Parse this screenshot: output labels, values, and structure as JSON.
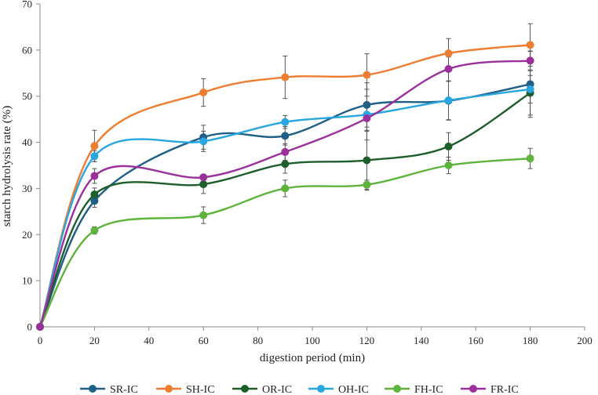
{
  "chart_data": {
    "type": "line",
    "title": "",
    "xlabel": "digestion period (min)",
    "ylabel": "starch hydrolysis rate (%)",
    "xlim": [
      0,
      200
    ],
    "ylim": [
      0,
      70
    ],
    "xticks": [
      0,
      20,
      40,
      60,
      80,
      100,
      120,
      140,
      160,
      180,
      200
    ],
    "yticks": [
      0,
      10,
      20,
      30,
      40,
      50,
      60,
      70
    ],
    "grid": false,
    "legend_position": "bottom",
    "x": [
      0,
      20,
      60,
      90,
      120,
      150,
      180
    ],
    "series": [
      {
        "name": "SR-IC",
        "color": "#1f5f85",
        "values": [
          0,
          27.3,
          41.1,
          41.4,
          48.1,
          49.0,
          52.6
        ],
        "errors": [
          0,
          1.4,
          2.6,
          2.0,
          4.8,
          4.2,
          7.2
        ]
      },
      {
        "name": "SH-IC",
        "color": "#ed7d31",
        "values": [
          0,
          39.2,
          50.8,
          54.1,
          54.6,
          59.3,
          61.1
        ],
        "errors": [
          0,
          3.4,
          3.0,
          4.6,
          4.6,
          3.2,
          4.6
        ]
      },
      {
        "name": "OR-IC",
        "color": "#1d5e2b",
        "values": [
          0,
          28.7,
          30.9,
          35.3,
          36.1,
          39.1,
          50.7
        ],
        "errors": [
          0,
          1.4,
          2.0,
          2.0,
          6.5,
          3.0,
          4.8
        ]
      },
      {
        "name": "OH-IC",
        "color": "#27a6df",
        "values": [
          0,
          37.0,
          40.2,
          44.4,
          46.0,
          49.1,
          51.5
        ],
        "errors": [
          0,
          1.2,
          2.2,
          1.4,
          5.5,
          4.2,
          3.0
        ]
      },
      {
        "name": "FH-IC",
        "color": "#5db33c",
        "values": [
          0,
          20.9,
          24.2,
          30.0,
          30.8,
          35.0,
          36.5
        ],
        "errors": [
          0,
          0.8,
          1.8,
          1.8,
          1.0,
          1.8,
          2.2
        ]
      },
      {
        "name": "FR-IC",
        "color": "#9b309b",
        "values": [
          0,
          32.7,
          32.4,
          37.9,
          45.2,
          55.9,
          57.7
        ],
        "errors": [
          0,
          1.6,
          0.6,
          1.8,
          2.8,
          2.6,
          2.0
        ]
      }
    ]
  }
}
